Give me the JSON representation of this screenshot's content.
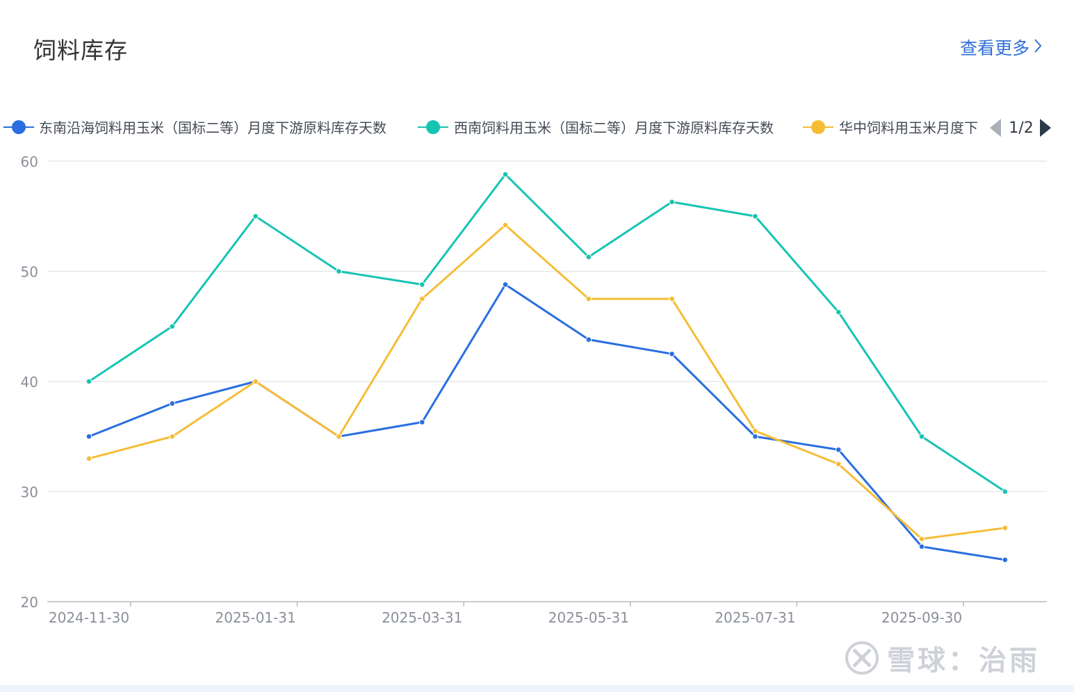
{
  "header": {
    "title": "饲料库存",
    "more_label": "查看更多"
  },
  "legend": {
    "page_indicator": "1/2",
    "items_display": [
      "东南沿海饲料用玉米（国标二等）月度下游原料库存天数",
      "西南饲料用玉米（国标二等）月度下游原料库存天数",
      "华中饲料用玉米月度下"
    ]
  },
  "watermark": {
    "text": "雪球：治雨"
  },
  "chart_data": {
    "type": "line",
    "x": [
      "2024-11-30",
      "2024-12-31",
      "2025-01-31",
      "2025-02-28",
      "2025-03-31",
      "2025-04-30",
      "2025-05-31",
      "2025-06-30",
      "2025-07-31",
      "2025-08-31",
      "2025-09-30",
      "2025-10-31"
    ],
    "x_tick_labels": [
      "2024-11-30",
      "2025-01-31",
      "2025-03-31",
      "2025-05-31",
      "2025-07-31",
      "2025-09-30"
    ],
    "y_ticks": [
      20,
      30,
      40,
      50,
      60
    ],
    "ylim": [
      20,
      60
    ],
    "grid": true,
    "legend_position": "top",
    "series": [
      {
        "name": "东南沿海饲料用玉米（国标二等）月度下游原料库存天数",
        "color": "#2a6ee0",
        "values": [
          35,
          38,
          40,
          35,
          36.3,
          48.8,
          43.8,
          42.5,
          35,
          33.8,
          25,
          23.8
        ]
      },
      {
        "name": "西南饲料用玉米（国标二等）月度下游原料库存天数",
        "color": "#16c4b4",
        "values": [
          40,
          45,
          55,
          50,
          48.8,
          58.8,
          51.3,
          56.3,
          55,
          46.3,
          35,
          30
        ]
      },
      {
        "name": "华中饲料用玉米月度下游原料库存天数",
        "color": "#f5bd36",
        "values": [
          33,
          35,
          40,
          35,
          47.5,
          54.2,
          47.5,
          47.5,
          35.5,
          32.5,
          25.7,
          26.7
        ]
      }
    ]
  }
}
